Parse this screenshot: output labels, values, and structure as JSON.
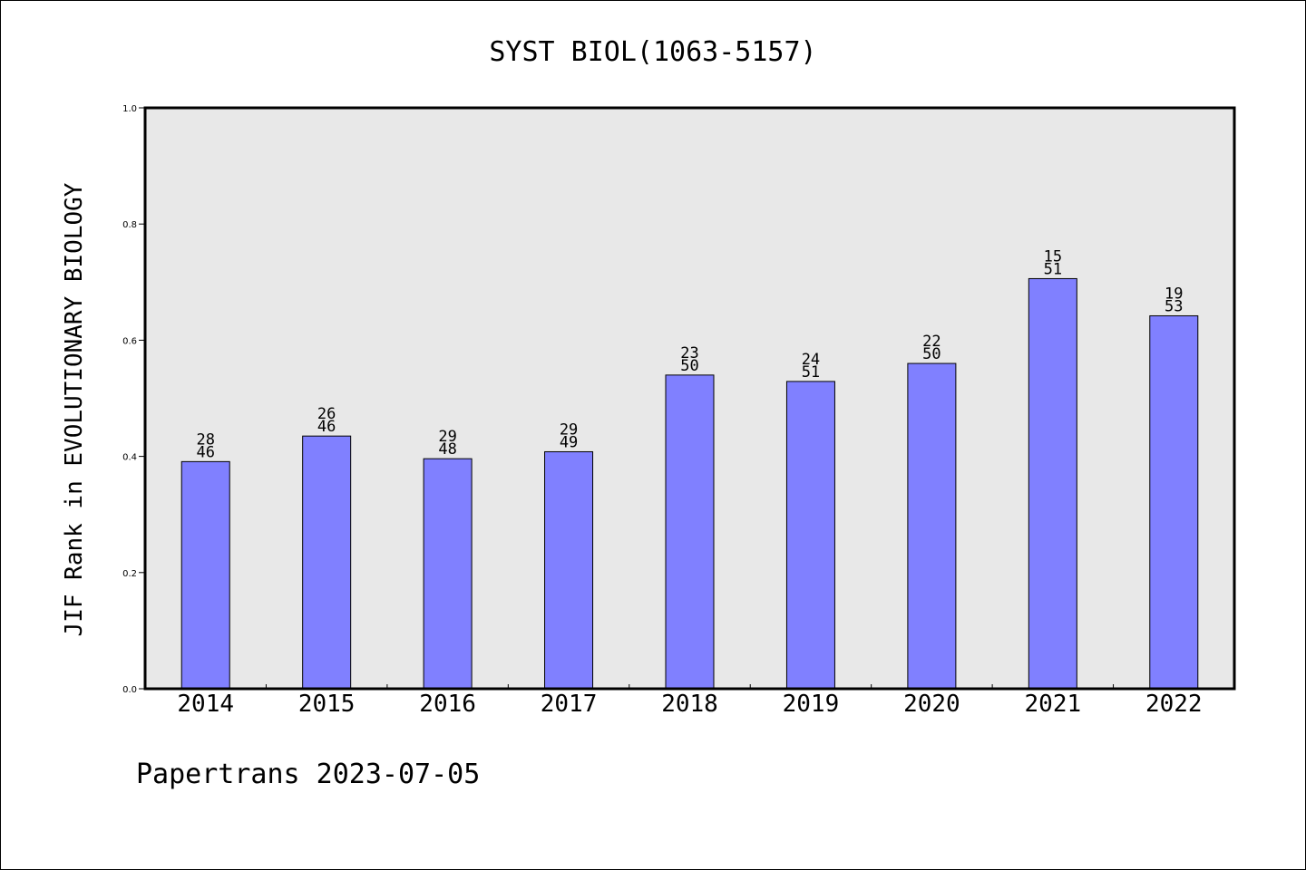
{
  "chart_data": {
    "type": "bar",
    "title": "SYST BIOL(1063-5157)",
    "xlabel": "",
    "ylabel": "JIF Rank in EVOLUTIONARY BIOLOGY",
    "categories": [
      "2014",
      "2015",
      "2016",
      "2017",
      "2018",
      "2019",
      "2020",
      "2021",
      "2022"
    ],
    "values": [
      0.391,
      0.435,
      0.396,
      0.408,
      0.54,
      0.529,
      0.56,
      0.706,
      0.642
    ],
    "rank_labels": [
      {
        "rank": "28",
        "total": "46"
      },
      {
        "rank": "26",
        "total": "46"
      },
      {
        "rank": "29",
        "total": "48"
      },
      {
        "rank": "29",
        "total": "49"
      },
      {
        "rank": "23",
        "total": "50"
      },
      {
        "rank": "24",
        "total": "51"
      },
      {
        "rank": "22",
        "total": "50"
      },
      {
        "rank": "15",
        "total": "51"
      },
      {
        "rank": "19",
        "total": "53"
      }
    ],
    "ylim": [
      0,
      1.0
    ],
    "yticks": [
      "0.0",
      "0.2",
      "0.4",
      "0.6",
      "0.8",
      "1.0"
    ],
    "grid": false,
    "colors": {
      "bar": "#8080ff",
      "plot_background": "#e8e8e8"
    }
  },
  "footer": {
    "credit": "Papertrans 2023-07-05"
  }
}
